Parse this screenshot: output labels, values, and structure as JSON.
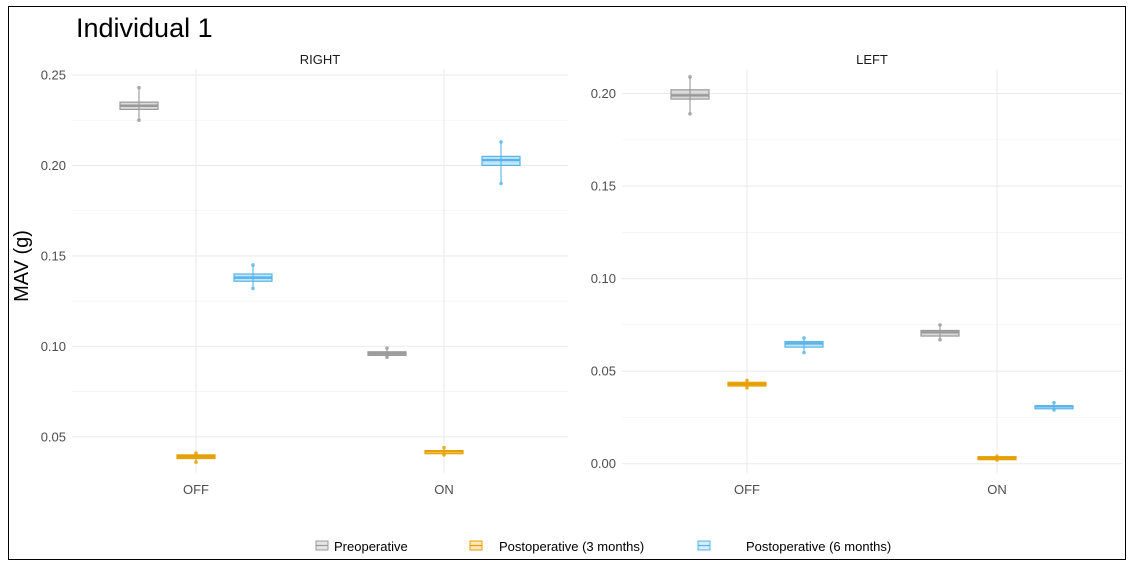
{
  "figure_title": "Individual 1",
  "ylabel": "MAV (g)",
  "legend": [
    {
      "label": "Preoperative",
      "color": "#999999"
    },
    {
      "label": "Postoperative (3 months)",
      "color": "#E69F00"
    },
    {
      "label": "Postoperative (6 months)",
      "color": "#56B4E9"
    }
  ],
  "chart_data": [
    {
      "type": "box",
      "facet": "RIGHT",
      "categories": [
        "OFF",
        "ON"
      ],
      "ylim": [
        0.03,
        0.25
      ],
      "yticks": [
        0.05,
        0.1,
        0.15,
        0.2,
        0.25
      ],
      "ytick_labels": [
        "0.05",
        "0.10",
        "0.15",
        "0.20",
        "0.25"
      ],
      "grid": true,
      "series": [
        {
          "name": "Preoperative",
          "boxes": [
            {
              "category": "OFF",
              "min": 0.225,
              "q1": 0.231,
              "median": 0.233,
              "q3": 0.235,
              "max": 0.243
            },
            {
              "category": "ON",
              "min": 0.094,
              "q1": 0.095,
              "median": 0.096,
              "q3": 0.097,
              "max": 0.099
            }
          ]
        },
        {
          "name": "Postoperative (3 months)",
          "boxes": [
            {
              "category": "OFF",
              "min": 0.036,
              "q1": 0.038,
              "median": 0.039,
              "q3": 0.04,
              "max": 0.041
            },
            {
              "category": "ON",
              "min": 0.04,
              "q1": 0.041,
              "median": 0.042,
              "q3": 0.042,
              "max": 0.044
            }
          ]
        },
        {
          "name": "Postoperative (6 months)",
          "boxes": [
            {
              "category": "OFF",
              "min": 0.132,
              "q1": 0.136,
              "median": 0.138,
              "q3": 0.14,
              "max": 0.145
            },
            {
              "category": "ON",
              "min": 0.19,
              "q1": 0.2,
              "median": 0.203,
              "q3": 0.205,
              "max": 0.213
            }
          ]
        }
      ]
    },
    {
      "type": "box",
      "facet": "LEFT",
      "categories": [
        "OFF",
        "ON"
      ],
      "ylim": [
        -0.005,
        0.21
      ],
      "yticks": [
        0.0,
        0.05,
        0.1,
        0.15,
        0.2
      ],
      "ytick_labels": [
        "0.00",
        "0.05",
        "0.10",
        "0.15",
        "0.20"
      ],
      "grid": true,
      "series": [
        {
          "name": "Preoperative",
          "boxes": [
            {
              "category": "OFF",
              "min": 0.189,
              "q1": 0.197,
              "median": 0.199,
              "q3": 0.202,
              "max": 0.209
            },
            {
              "category": "ON",
              "min": 0.067,
              "q1": 0.069,
              "median": 0.071,
              "q3": 0.072,
              "max": 0.075
            }
          ]
        },
        {
          "name": "Postoperative (3 months)",
          "boxes": [
            {
              "category": "OFF",
              "min": 0.041,
              "q1": 0.042,
              "median": 0.043,
              "q3": 0.044,
              "max": 0.045
            },
            {
              "category": "ON",
              "min": 0.002,
              "q1": 0.0025,
              "median": 0.003,
              "q3": 0.0035,
              "max": 0.004
            }
          ]
        },
        {
          "name": "Postoperative (6 months)",
          "boxes": [
            {
              "category": "OFF",
              "min": 0.06,
              "q1": 0.063,
              "median": 0.065,
              "q3": 0.066,
              "max": 0.068
            },
            {
              "category": "ON",
              "min": 0.029,
              "q1": 0.03,
              "median": 0.031,
              "q3": 0.031,
              "max": 0.033
            }
          ]
        }
      ]
    }
  ]
}
